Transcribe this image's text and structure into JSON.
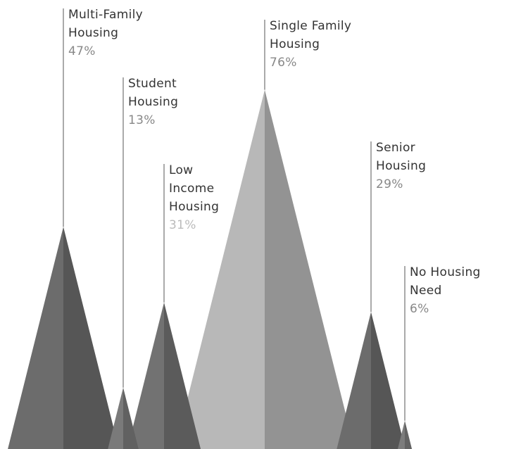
{
  "chart_data": {
    "type": "triangle",
    "categories": [
      "Multi-Family Housing",
      "Student Housing",
      "Low Income Housing",
      "Single Family Housing",
      "Senior Housing",
      "No Housing Need"
    ],
    "values": [
      47,
      13,
      31,
      76,
      29,
      6
    ],
    "value_labels": [
      "47%",
      "13%",
      "31%",
      "76%",
      "29%",
      "6%"
    ],
    "colors": [
      "#6c6c6c",
      "#7a7a7a",
      "#727272",
      "#b8b8b8",
      "#6c6c6c",
      "#7c7c7c"
    ],
    "ylim": [
      0,
      95
    ]
  }
}
